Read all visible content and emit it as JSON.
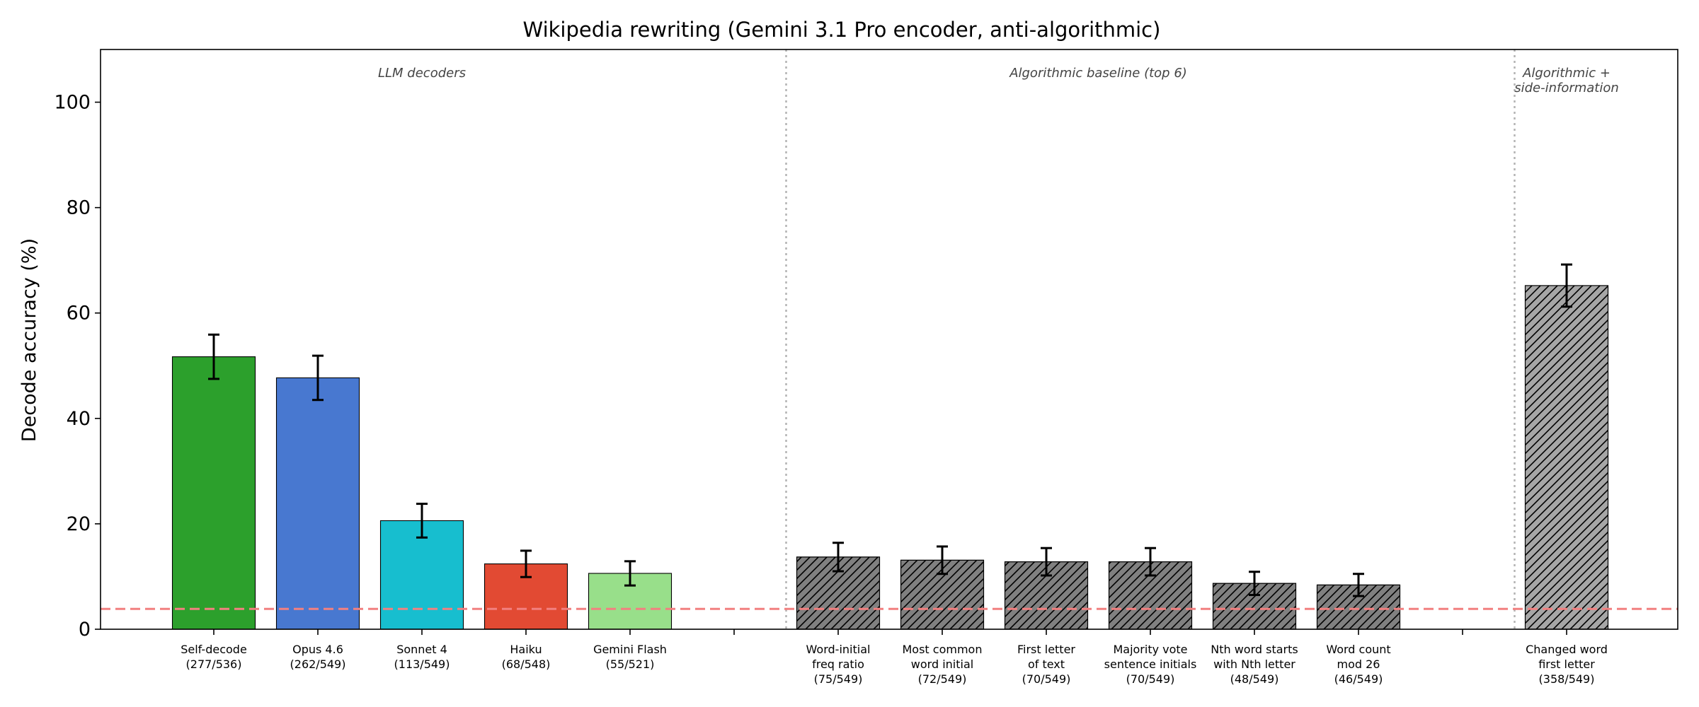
{
  "chart_data": {
    "type": "bar",
    "title": "Wikipedia rewriting (Gemini 3.1 Pro encoder, anti-algorithmic)",
    "xlabel": "",
    "ylabel": "Decode accuracy (%)",
    "ylim": [
      0,
      110
    ],
    "yticks": [
      0,
      20,
      40,
      60,
      80,
      100
    ],
    "grid": false,
    "chance_line": {
      "value": 3.85,
      "color": "#f28080",
      "style": "dashed"
    },
    "group_labels": [
      {
        "lines": [
          "LLM decoders"
        ]
      },
      {
        "lines": [
          "Algorithmic baseline (top 6)"
        ]
      },
      {
        "lines": [
          "Algorithmic +",
          "side-information"
        ]
      }
    ],
    "categories": [
      {
        "lines": [
          "Self-decode",
          "(277/536)"
        ],
        "value": 51.7,
        "err": 4.2,
        "color": "#2ca02c",
        "hatch": false
      },
      {
        "lines": [
          "Opus 4.6",
          "(262/549)"
        ],
        "value": 47.7,
        "err": 4.2,
        "color": "#4878d0",
        "hatch": false
      },
      {
        "lines": [
          "Sonnet 4",
          "(113/549)"
        ],
        "value": 20.6,
        "err": 3.2,
        "color": "#17becf",
        "hatch": false
      },
      {
        "lines": [
          "Haiku",
          "(68/548)"
        ],
        "value": 12.4,
        "err": 2.5,
        "color": "#e24a33",
        "hatch": false
      },
      {
        "lines": [
          "Gemini Flash",
          "(55/521)"
        ],
        "value": 10.6,
        "err": 2.3,
        "color": "#98df8a",
        "hatch": false
      },
      {
        "lines": [
          "Word-initial",
          "freq ratio",
          "(75/549)"
        ],
        "value": 13.7,
        "err": 2.7,
        "color": "#808080",
        "hatch": true
      },
      {
        "lines": [
          "Most common",
          "word initial",
          "(72/549)"
        ],
        "value": 13.1,
        "err": 2.6,
        "color": "#808080",
        "hatch": true
      },
      {
        "lines": [
          "First letter",
          "of text",
          "(70/549)"
        ],
        "value": 12.8,
        "err": 2.6,
        "color": "#808080",
        "hatch": true
      },
      {
        "lines": [
          "Majority vote",
          "sentence initials",
          "(70/549)"
        ],
        "value": 12.8,
        "err": 2.6,
        "color": "#808080",
        "hatch": true
      },
      {
        "lines": [
          "Nth word starts",
          "with Nth letter",
          "(48/549)"
        ],
        "value": 8.7,
        "err": 2.2,
        "color": "#808080",
        "hatch": true
      },
      {
        "lines": [
          "Word count",
          "mod 26",
          "(46/549)"
        ],
        "value": 8.4,
        "err": 2.1,
        "color": "#808080",
        "hatch": true
      },
      {
        "lines": [
          "Changed word",
          "first letter",
          "(358/549)"
        ],
        "value": 65.2,
        "err": 4.0,
        "color": "#a6a6a6",
        "hatch": true
      }
    ]
  }
}
